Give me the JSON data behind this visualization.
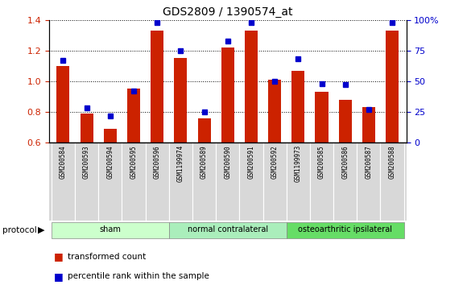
{
  "title": "GDS2809 / 1390574_at",
  "samples": [
    "GSM200584",
    "GSM200593",
    "GSM200594",
    "GSM200595",
    "GSM200596",
    "GSM1199974",
    "GSM200589",
    "GSM200590",
    "GSM200591",
    "GSM200592",
    "GSM1199973",
    "GSM200585",
    "GSM200586",
    "GSM200587",
    "GSM200588"
  ],
  "transformed_count": [
    1.1,
    0.79,
    0.69,
    0.95,
    1.33,
    1.15,
    0.76,
    1.22,
    1.33,
    1.01,
    1.07,
    0.93,
    0.88,
    0.83,
    1.33
  ],
  "percentile_rank": [
    67,
    28,
    22,
    42,
    98,
    75,
    25,
    83,
    98,
    50,
    68,
    48,
    47,
    27,
    98
  ],
  "groups": [
    {
      "label": "sham",
      "start": 0,
      "end": 5
    },
    {
      "label": "normal contralateral",
      "start": 5,
      "end": 10
    },
    {
      "label": "osteoarthritic ipsilateral",
      "start": 10,
      "end": 15
    }
  ],
  "group_colors": [
    "#ccffcc",
    "#aaeebb",
    "#66dd66"
  ],
  "ylim_left": [
    0.6,
    1.4
  ],
  "ylim_right": [
    0,
    100
  ],
  "yticks_left": [
    0.6,
    0.8,
    1.0,
    1.2,
    1.4
  ],
  "yticks_right": [
    0,
    25,
    50,
    75,
    100
  ],
  "ytick_labels_right": [
    "0",
    "25",
    "50",
    "75",
    "100%"
  ],
  "bar_color": "#cc2200",
  "dot_color": "#0000cc",
  "bar_width": 0.55,
  "grid_color": "#000000",
  "bg_color": "#ffffff",
  "plot_bg_color": "#ffffff",
  "tick_label_color_left": "#cc2200",
  "tick_label_color_right": "#0000cc",
  "label_bg_color": "#d8d8d8",
  "label_sep_color": "#ffffff"
}
